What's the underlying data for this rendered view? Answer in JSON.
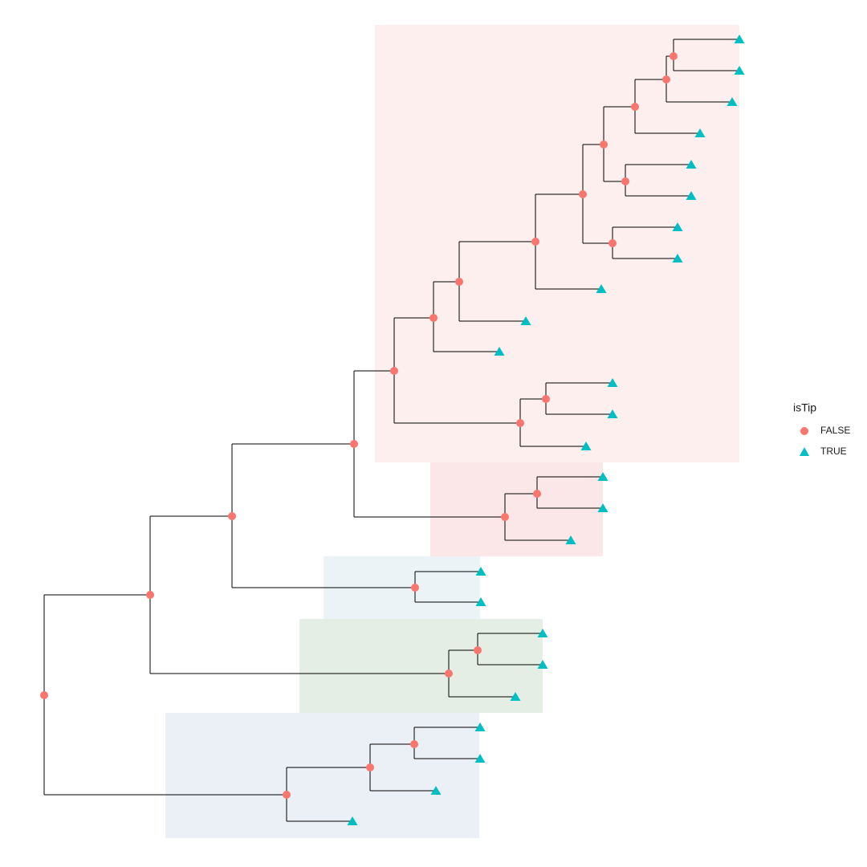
{
  "legend": {
    "title": "isTip",
    "items": [
      "FALSE",
      "TRUE"
    ]
  }
}
